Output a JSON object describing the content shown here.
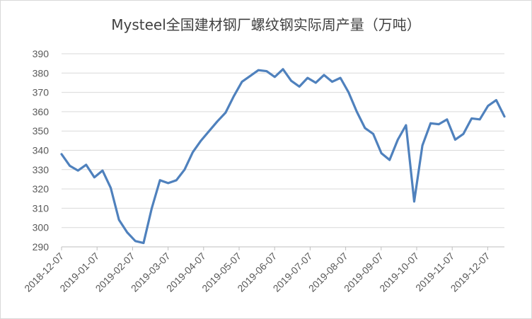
{
  "chart_data": {
    "type": "line",
    "title": "Mysteel全国建材钢厂螺纹钢实际周产量（万吨）",
    "xlabel": "",
    "ylabel": "",
    "ylim": [
      290,
      390
    ],
    "yticks": [
      290,
      300,
      310,
      320,
      330,
      340,
      350,
      360,
      370,
      380,
      390
    ],
    "grid": true,
    "legend": "none",
    "line_color": "#4f81bd",
    "x_tick_labels": [
      "2018-12-07",
      "2019-01-07",
      "2019-02-07",
      "2019-03-07",
      "2019-04-07",
      "2019-05-07",
      "2019-06-07",
      "2019-07-07",
      "2019-08-07",
      "2019-09-07",
      "2019-10-07",
      "2019-11-07",
      "2019-12-07"
    ],
    "series": [
      {
        "values": [
          338,
          332,
          329.5,
          332.5,
          326,
          329.5,
          320.5,
          304,
          297.5,
          293,
          292,
          310,
          324.5,
          323,
          324.5,
          330,
          339,
          345,
          350,
          355,
          359.5,
          368,
          375.5,
          378.5,
          381.5,
          381,
          378,
          382,
          376,
          373,
          377.5,
          375,
          379,
          375.5,
          377.5,
          370,
          360,
          351.5,
          348.5,
          338.5,
          335,
          345.5,
          353,
          313.5,
          342.5,
          354,
          353.5,
          356,
          345.5,
          348.5,
          356.5,
          356,
          363,
          366,
          357.5
        ]
      }
    ]
  }
}
